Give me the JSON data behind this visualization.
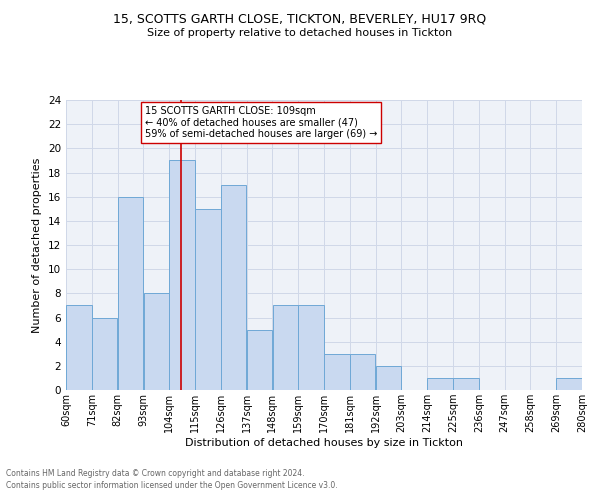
{
  "title1": "15, SCOTTS GARTH CLOSE, TICKTON, BEVERLEY, HU17 9RQ",
  "title2": "Size of property relative to detached houses in Tickton",
  "xlabel": "Distribution of detached houses by size in Tickton",
  "ylabel": "Number of detached properties",
  "footnote1": "Contains HM Land Registry data © Crown copyright and database right 2024.",
  "footnote2": "Contains public sector information licensed under the Open Government Licence v3.0.",
  "bin_labels": [
    "60sqm",
    "71sqm",
    "82sqm",
    "93sqm",
    "104sqm",
    "115sqm",
    "126sqm",
    "137sqm",
    "148sqm",
    "159sqm",
    "170sqm",
    "181sqm",
    "192sqm",
    "203sqm",
    "214sqm",
    "225sqm",
    "236sqm",
    "247sqm",
    "258sqm",
    "269sqm",
    "280sqm"
  ],
  "bin_edges": [
    60,
    71,
    82,
    93,
    104,
    115,
    126,
    137,
    148,
    159,
    170,
    181,
    192,
    203,
    214,
    225,
    236,
    247,
    258,
    269,
    280
  ],
  "counts": [
    7,
    6,
    16,
    8,
    19,
    15,
    17,
    5,
    7,
    7,
    3,
    3,
    2,
    0,
    1,
    1,
    0,
    0,
    0,
    1
  ],
  "bar_color": "#c9d9f0",
  "bar_edge_color": "#6fa8d6",
  "vline_x": 109,
  "vline_color": "#cc0000",
  "annotation_text": "15 SCOTTS GARTH CLOSE: 109sqm\n← 40% of detached houses are smaller (47)\n59% of semi-detached houses are larger (69) →",
  "annotation_box_color": "#ffffff",
  "annotation_box_edge": "#cc0000",
  "ylim": [
    0,
    24
  ],
  "yticks": [
    0,
    2,
    4,
    6,
    8,
    10,
    12,
    14,
    16,
    18,
    20,
    22,
    24
  ],
  "grid_color": "#d0d8e8",
  "bg_color": "#eef2f8",
  "title1_fontsize": 9,
  "title2_fontsize": 8,
  "xlabel_fontsize": 8,
  "ylabel_fontsize": 8,
  "tick_fontsize": 7,
  "footnote_fontsize": 5.5,
  "ann_fontsize": 7
}
